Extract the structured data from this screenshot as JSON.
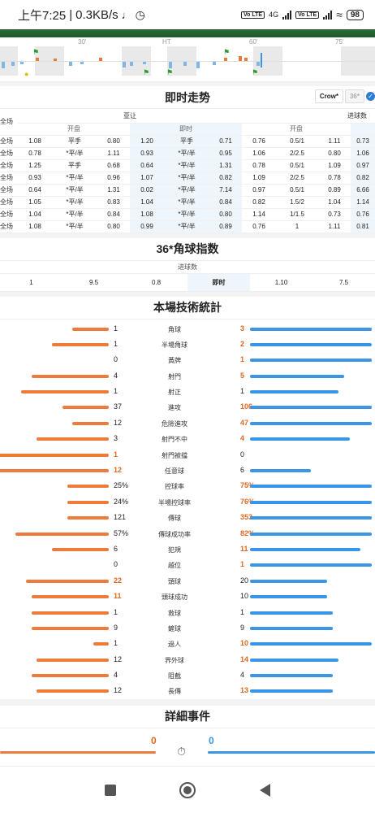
{
  "status_bar": {
    "time": "上午7:25",
    "speed": "0.3KB/s",
    "net": "4G",
    "battery": "98"
  },
  "timeline": {
    "labels": [
      "30'",
      "HT",
      "60'",
      "75'"
    ]
  },
  "live_trend": {
    "title": "即时走势",
    "source_button": "Crow*",
    "alt_button": "36*",
    "group_asian": "亚让",
    "group_goals": "进球数",
    "sub_open": "开盘",
    "sub_live": "即时",
    "sub_goals_open": "开盘",
    "rows": [
      {
        "label": "全场",
        "o1": "",
        "o2": "",
        "o3": "",
        "l1": "",
        "l2": "",
        "l3": "",
        "g1": "",
        "g2": "",
        "g3": "",
        "g4": ""
      },
      {
        "label": "全场",
        "o1": "1.08",
        "o2": "平手",
        "o3": "0.80",
        "l1": "1.20",
        "l2": "平手",
        "l3": "0.71",
        "g1": "0.76",
        "g2": "0.5/1",
        "g3": "1.11",
        "g4": "0.73"
      },
      {
        "label": "全场",
        "o1": "0.78",
        "o2": "*平/半",
        "o3": "1.11",
        "l1": "0.93",
        "l2": "*平/半",
        "l3": "0.95",
        "g1": "1.06",
        "g2": "2/2.5",
        "g3": "0.80",
        "g4": "1.06"
      },
      {
        "label": "全场",
        "o1": "1.25",
        "o2": "平手",
        "o3": "0.68",
        "l1": "0.64",
        "l2": "*平/半",
        "l3": "1.31",
        "g1": "0.78",
        "g2": "0.5/1",
        "g3": "1.09",
        "g4": "0.97"
      },
      {
        "label": "全场",
        "o1": "0.93",
        "o2": "*平/半",
        "o3": "0.96",
        "l1": "1.07",
        "l2": "*平/半",
        "l3": "0.82",
        "g1": "1.09",
        "g2": "2/2.5",
        "g3": "0.78",
        "g4": "0.82"
      },
      {
        "label": "全场",
        "o1": "0.64",
        "o2": "*平/半",
        "o3": "1.31",
        "l1": "0.02",
        "l2": "*平/半",
        "l3": "7.14",
        "g1": "0.97",
        "g2": "0.5/1",
        "g3": "0.89",
        "g4": "6.66"
      },
      {
        "label": "全场",
        "o1": "1.05",
        "o2": "*平/半",
        "o3": "0.83",
        "l1": "1.04",
        "l2": "*平/半",
        "l3": "0.84",
        "g1": "0.82",
        "g2": "1.5/2",
        "g3": "1.04",
        "g4": "1.14"
      },
      {
        "label": "全场",
        "o1": "1.04",
        "o2": "*平/半",
        "o3": "0.84",
        "l1": "1.08",
        "l2": "*平/半",
        "l3": "0.80",
        "g1": "1.14",
        "g2": "1/1.5",
        "g3": "0.73",
        "g4": "0.76"
      },
      {
        "label": "全场",
        "o1": "1.08",
        "o2": "*平/半",
        "o3": "0.80",
        "l1": "0.99",
        "l2": "*平/半",
        "l3": "0.89",
        "g1": "0.76",
        "g2": "1",
        "g3": "1.11",
        "g4": "0.81"
      }
    ]
  },
  "corner_index": {
    "title": "36*角球指数",
    "header": "进球数",
    "cells": [
      "1",
      "9.5",
      "0.8",
      "即时",
      "1.10",
      "7.5"
    ]
  },
  "tech_stats": {
    "title": "本場技術統計",
    "rows": [
      {
        "name": "角球",
        "home": "1",
        "away": "3",
        "hl": 0.07,
        "al": 0.22,
        "hh": false,
        "ah": true
      },
      {
        "name": "半場角球",
        "home": "1",
        "away": "2",
        "hl": 0.11,
        "al": 0.22,
        "hh": false,
        "ah": true
      },
      {
        "name": "黃牌",
        "home": "0",
        "away": "1",
        "hl": 0,
        "al": 0.22,
        "hh": false,
        "ah": true
      },
      {
        "name": "射門",
        "home": "4",
        "away": "5",
        "hl": 0.15,
        "al": 0.17,
        "hh": false,
        "ah": true
      },
      {
        "name": "射正",
        "home": "1",
        "away": "1",
        "hl": 0.17,
        "al": 0.16,
        "hh": false,
        "ah": false
      },
      {
        "name": "進攻",
        "home": "37",
        "away": "106",
        "hl": 0.09,
        "al": 0.22,
        "hh": false,
        "ah": true
      },
      {
        "name": "危險進攻",
        "home": "12",
        "away": "47",
        "hl": 0.07,
        "al": 0.22,
        "hh": false,
        "ah": true
      },
      {
        "name": "射門不中",
        "home": "3",
        "away": "4",
        "hl": 0.14,
        "al": 0.18,
        "hh": false,
        "ah": true
      },
      {
        "name": "射門被擋",
        "home": "1",
        "away": "0",
        "hl": 0.22,
        "al": 0,
        "hh": true,
        "ah": false
      },
      {
        "name": "任意球",
        "home": "12",
        "away": "6",
        "hl": 0.22,
        "al": 0.11,
        "hh": true,
        "ah": false
      },
      {
        "name": "控球率",
        "home": "25%",
        "away": "75%",
        "hl": 0.08,
        "al": 0.22,
        "hh": false,
        "ah": true
      },
      {
        "name": "半場控球率",
        "home": "24%",
        "away": "76%",
        "hl": 0.08,
        "al": 0.22,
        "hh": false,
        "ah": true
      },
      {
        "name": "傳球",
        "home": "121",
        "away": "353",
        "hl": 0.08,
        "al": 0.22,
        "hh": false,
        "ah": true
      },
      {
        "name": "傳球成功率",
        "home": "57%",
        "away": "82%",
        "hl": 0.18,
        "al": 0.22,
        "hh": false,
        "ah": true
      },
      {
        "name": "犯規",
        "home": "6",
        "away": "11",
        "hl": 0.11,
        "al": 0.2,
        "hh": false,
        "ah": true
      },
      {
        "name": "越位",
        "home": "0",
        "away": "1",
        "hl": 0,
        "al": 0.22,
        "hh": false,
        "ah": true
      },
      {
        "name": "頭球",
        "home": "22",
        "away": "20",
        "hl": 0.16,
        "al": 0.14,
        "hh": true,
        "ah": false
      },
      {
        "name": "頭球成功",
        "home": "11",
        "away": "10",
        "hl": 0.15,
        "al": 0.14,
        "hh": true,
        "ah": false
      },
      {
        "name": "救球",
        "home": "1",
        "away": "1",
        "hl": 0.15,
        "al": 0.15,
        "hh": false,
        "ah": false
      },
      {
        "name": "鏟球",
        "home": "9",
        "away": "9",
        "hl": 0.15,
        "al": 0.15,
        "hh": false,
        "ah": false
      },
      {
        "name": "過人",
        "home": "1",
        "away": "10",
        "hl": 0.03,
        "al": 0.22,
        "hh": false,
        "ah": true
      },
      {
        "name": "界外球",
        "home": "12",
        "away": "14",
        "hl": 0.14,
        "al": 0.16,
        "hh": false,
        "ah": true
      },
      {
        "name": "阻截",
        "home": "4",
        "away": "4",
        "hl": 0.15,
        "al": 0.15,
        "hh": false,
        "ah": false
      },
      {
        "name": "長傳",
        "home": "12",
        "away": "13",
        "hl": 0.14,
        "al": 0.15,
        "hh": false,
        "ah": true
      }
    ]
  },
  "events": {
    "title": "詳細事件",
    "home": "0",
    "away": "0"
  },
  "colors": {
    "home": "#ee7a3c",
    "away": "#3a95e6",
    "highlight": "#e0671e"
  }
}
